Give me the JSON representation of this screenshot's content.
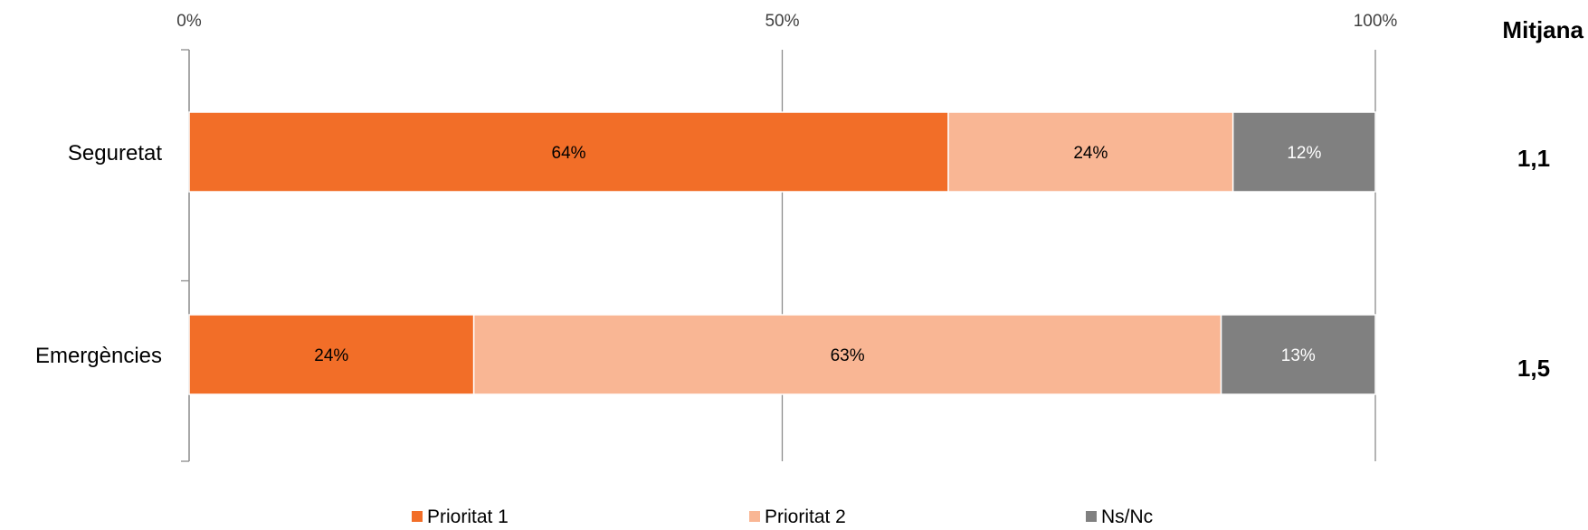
{
  "chart_data": {
    "type": "bar",
    "orientation": "horizontal",
    "stacked": true,
    "percent": true,
    "categories": [
      "Seguretat",
      "Emergències"
    ],
    "series": [
      {
        "name": "Prioritat 1",
        "values": [
          64,
          24
        ],
        "color": "#F26E28",
        "label_color": "#000000"
      },
      {
        "name": "Prioritat 2",
        "values": [
          24,
          63
        ],
        "color": "#F9B694",
        "label_color": "#000000"
      },
      {
        "name": "Ns/Nc",
        "values": [
          12,
          13
        ],
        "color": "#808080",
        "label_color": "#ffffff"
      }
    ],
    "xlim": [
      0,
      100
    ],
    "x_ticks": [
      0,
      50,
      100
    ],
    "x_tick_labels": [
      "0%",
      "50%",
      "100%"
    ],
    "axis_position": "top",
    "grid": true,
    "legend_position": "bottom",
    "side_column": {
      "header": "Mitjana",
      "values": [
        "1,1",
        "1,5"
      ]
    }
  }
}
